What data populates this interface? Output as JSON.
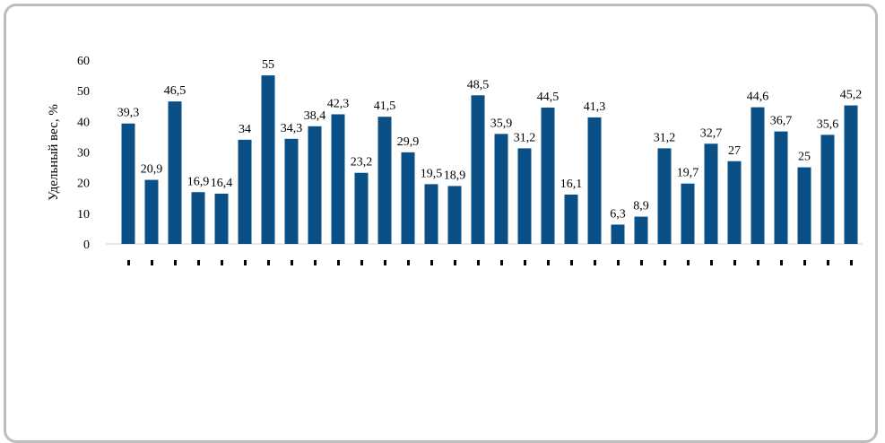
{
  "chart_data": {
    "type": "bar",
    "ylabel": "Удельный вес, %",
    "ylim": [
      0,
      60
    ],
    "yticks": [
      0,
      10,
      20,
      30,
      40,
      50,
      60
    ],
    "grid": false,
    "bar_color": "#0a4f86",
    "categories": [
      "",
      "",
      "",
      "",
      "",
      "",
      "",
      "",
      "",
      "",
      "",
      "",
      "",
      "",
      "",
      "",
      "",
      "",
      "",
      "",
      "",
      "",
      "",
      "",
      "",
      "",
      "",
      "",
      "",
      "",
      "",
      ""
    ],
    "values": [
      39.3,
      20.9,
      46.5,
      16.9,
      16.4,
      34,
      55,
      34.3,
      38.4,
      42.3,
      23.2,
      41.5,
      29.9,
      19.5,
      18.9,
      48.5,
      35.9,
      31.2,
      44.5,
      16.1,
      41.3,
      6.3,
      8.9,
      31.2,
      19.7,
      32.7,
      27,
      44.6,
      36.7,
      25,
      35.6,
      45.2
    ],
    "value_labels": [
      "39,3",
      "20,9",
      "46,5",
      "16,9",
      "16,4",
      "34",
      "55",
      "34,3",
      "38,4",
      "42,3",
      "23,2",
      "41,5",
      "29,9",
      "19,5",
      "18,9",
      "48,5",
      "35,9",
      "31,2",
      "44,5",
      "16,1",
      "41,3",
      "6,3",
      "8,9",
      "31,2",
      "19,7",
      "32,7",
      "27",
      "44,6",
      "36,7",
      "25",
      "35,6",
      "45,2"
    ]
  }
}
